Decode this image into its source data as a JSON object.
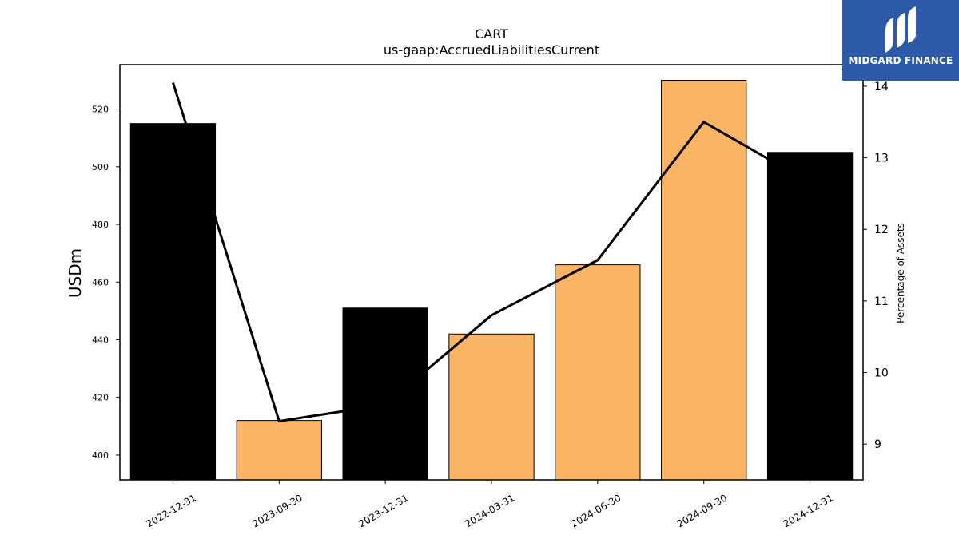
{
  "chart_data": {
    "type": "bar",
    "title": "CART",
    "subtitle": "us-gaap:AccruedLiabilitiesCurrent",
    "categories": [
      "2022-12-31",
      "2023-09-30",
      "2023-12-31",
      "2024-03-31",
      "2024-06-30",
      "2024-09-30",
      "2024-12-31"
    ],
    "bar_values": [
      515,
      412,
      451,
      442,
      466,
      530,
      505
    ],
    "bar_colors": [
      "#000000",
      "#fbb464",
      "#000000",
      "#fbb464",
      "#fbb464",
      "#fbb464",
      "#000000"
    ],
    "line_values": [
      14.05,
      9.32,
      9.55,
      10.8,
      11.57,
      13.5,
      12.65
    ],
    "line_color": "#000000",
    "ylabel": "USDm",
    "ylabel_right": "Percentage of Assets",
    "ylim": [
      391.4,
      535.4
    ],
    "ylim_right": [
      8.5,
      14.3
    ],
    "yticks": [
      400,
      420,
      440,
      460,
      480,
      500,
      520
    ],
    "yticks_right": [
      9,
      10,
      11,
      12,
      13,
      14
    ],
    "grid": false
  },
  "logo": {
    "text": "MIDGARD FINANCE",
    "background": "#2c5aa8"
  }
}
